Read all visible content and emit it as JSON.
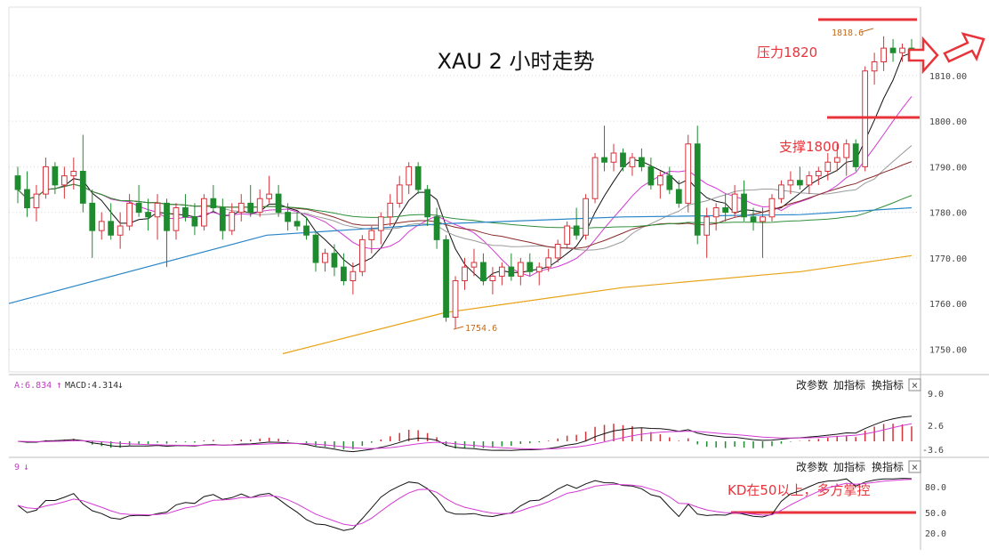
{
  "title": "XAU 2 小时走势",
  "colors": {
    "up": "#d4323a",
    "down": "#1f8b2f",
    "ma_black": "#111111",
    "ma_magenta": "#d33ad3",
    "ma_gray": "#9a9a9a",
    "ma_darkred": "#8a2a2a",
    "ma_green": "#2f8f3a",
    "ma_blue": "#2a86c8",
    "ma_orange": "#e8a317",
    "annotation_red": "#e8333a",
    "grid": "#d8d8d8",
    "axis_text": "#444444"
  },
  "annotations": {
    "pressure": "压力1820",
    "support": "支撑1800",
    "kd_note": "KD在50以上，多方掌控",
    "high_label": "1818.6",
    "low_label": "1754.6"
  },
  "macd_panel": {
    "legend_a": "A:6.834",
    "legend_macd": "MACD:4.314",
    "buttons": [
      "改参数",
      "加指标",
      "换指标"
    ],
    "close": "×",
    "ticks": [
      "9.0",
      "2.6",
      "-3.6"
    ]
  },
  "kd_panel": {
    "legend": "9",
    "buttons": [
      "改参数",
      "加指标",
      "换指标"
    ],
    "close": "×",
    "ticks": [
      "80.0",
      "50.0",
      "20.0"
    ]
  },
  "chart_data": {
    "type": "candlestick",
    "title": "XAU 2 小时走势",
    "ylim": [
      1745,
      1825
    ],
    "yticks": [
      1750,
      1760,
      1770,
      1780,
      1790,
      1800,
      1810
    ],
    "ytick_labels": [
      "1750.00",
      "1760.00",
      "1770.00",
      "1780.00",
      "1790.00",
      "1800.00",
      "1810.00"
    ],
    "candles": [
      [
        1788,
        1790,
        1782,
        1785
      ],
      [
        1785,
        1789,
        1779,
        1781
      ],
      [
        1781,
        1786,
        1778,
        1784
      ],
      [
        1784,
        1792,
        1783,
        1790
      ],
      [
        1790,
        1791,
        1784,
        1786
      ],
      [
        1786,
        1790,
        1783,
        1788
      ],
      [
        1788,
        1792,
        1785,
        1789
      ],
      [
        1789,
        1797,
        1780,
        1782
      ],
      [
        1782,
        1785,
        1770,
        1776
      ],
      [
        1776,
        1780,
        1774,
        1778
      ],
      [
        1778,
        1782,
        1774,
        1775
      ],
      [
        1775,
        1780,
        1772,
        1777
      ],
      [
        1777,
        1784,
        1776,
        1782
      ],
      [
        1782,
        1786,
        1779,
        1780
      ],
      [
        1780,
        1783,
        1776,
        1779
      ],
      [
        1779,
        1784,
        1774,
        1782
      ],
      [
        1782,
        1783,
        1768,
        1776
      ],
      [
        1776,
        1782,
        1774,
        1781
      ],
      [
        1781,
        1784,
        1778,
        1779
      ],
      [
        1779,
        1782,
        1775,
        1777
      ],
      [
        1777,
        1784,
        1776,
        1783
      ],
      [
        1783,
        1786,
        1780,
        1781
      ],
      [
        1781,
        1783,
        1774,
        1776
      ],
      [
        1776,
        1782,
        1775,
        1780
      ],
      [
        1780,
        1784,
        1778,
        1782
      ],
      [
        1782,
        1786,
        1779,
        1780
      ],
      [
        1780,
        1785,
        1779,
        1783
      ],
      [
        1783,
        1788,
        1782,
        1784
      ],
      [
        1784,
        1786,
        1779,
        1780
      ],
      [
        1780,
        1782,
        1776,
        1778
      ],
      [
        1778,
        1780,
        1776,
        1777
      ],
      [
        1777,
        1779,
        1774,
        1775
      ],
      [
        1775,
        1776,
        1767,
        1769
      ],
      [
        1769,
        1772,
        1767,
        1771
      ],
      [
        1771,
        1773,
        1766,
        1768
      ],
      [
        1768,
        1771,
        1764,
        1765
      ],
      [
        1765,
        1769,
        1762,
        1767
      ],
      [
        1767,
        1775,
        1766,
        1774
      ],
      [
        1774,
        1777,
        1771,
        1776
      ],
      [
        1776,
        1780,
        1773,
        1779
      ],
      [
        1779,
        1784,
        1777,
        1782
      ],
      [
        1782,
        1788,
        1781,
        1786
      ],
      [
        1786,
        1791,
        1784,
        1790
      ],
      [
        1790,
        1791,
        1784,
        1785
      ],
      [
        1785,
        1786,
        1777,
        1779
      ],
      [
        1779,
        1781,
        1772,
        1774
      ],
      [
        1774,
        1775,
        1756,
        1757
      ],
      [
        1757,
        1766,
        1754.6,
        1765
      ],
      [
        1765,
        1770,
        1763,
        1768
      ],
      [
        1768,
        1772,
        1766,
        1769
      ],
      [
        1769,
        1771,
        1764,
        1765
      ],
      [
        1765,
        1768,
        1762,
        1766
      ],
      [
        1766,
        1769,
        1764,
        1768
      ],
      [
        1768,
        1771,
        1765,
        1766
      ],
      [
        1766,
        1770,
        1764,
        1769
      ],
      [
        1769,
        1771,
        1766,
        1767
      ],
      [
        1767,
        1769,
        1764,
        1768
      ],
      [
        1768,
        1772,
        1767,
        1770
      ],
      [
        1770,
        1774,
        1769,
        1773
      ],
      [
        1773,
        1778,
        1772,
        1777
      ],
      [
        1777,
        1781,
        1774,
        1775
      ],
      [
        1775,
        1784,
        1774,
        1783
      ],
      [
        1783,
        1793,
        1782,
        1792
      ],
      [
        1792,
        1799,
        1789,
        1791
      ],
      [
        1791,
        1795,
        1789,
        1793
      ],
      [
        1793,
        1794,
        1789,
        1790
      ],
      [
        1790,
        1793,
        1788,
        1792
      ],
      [
        1792,
        1794,
        1789,
        1790
      ],
      [
        1790,
        1792,
        1785,
        1786
      ],
      [
        1786,
        1789,
        1783,
        1788
      ],
      [
        1788,
        1790,
        1784,
        1785
      ],
      [
        1785,
        1787,
        1781,
        1782
      ],
      [
        1782,
        1797,
        1780,
        1795
      ],
      [
        1795,
        1799,
        1773,
        1775
      ],
      [
        1775,
        1781,
        1770,
        1779
      ],
      [
        1779,
        1782,
        1776,
        1781
      ],
      [
        1781,
        1784,
        1778,
        1780
      ],
      [
        1780,
        1786,
        1779,
        1784
      ],
      [
        1784,
        1787,
        1778,
        1779
      ],
      [
        1779,
        1781,
        1776,
        1778
      ],
      [
        1778,
        1781,
        1770,
        1779
      ],
      [
        1779,
        1784,
        1778,
        1783
      ],
      [
        1783,
        1787,
        1782,
        1786
      ],
      [
        1786,
        1789,
        1784,
        1787
      ],
      [
        1787,
        1790,
        1785,
        1786
      ],
      [
        1786,
        1789,
        1784,
        1788
      ],
      [
        1788,
        1790,
        1786,
        1789
      ],
      [
        1789,
        1793,
        1787,
        1791
      ],
      [
        1791,
        1795,
        1789,
        1792
      ],
      [
        1792,
        1796,
        1788,
        1795
      ],
      [
        1795,
        1796,
        1789,
        1790
      ],
      [
        1790,
        1812,
        1789,
        1811
      ],
      [
        1811,
        1815,
        1808,
        1813
      ],
      [
        1813,
        1818.6,
        1811,
        1816
      ],
      [
        1816,
        1818,
        1813,
        1815
      ],
      [
        1815,
        1817,
        1813,
        1816
      ],
      [
        1816,
        1818,
        1814,
        1815
      ]
    ]
  }
}
